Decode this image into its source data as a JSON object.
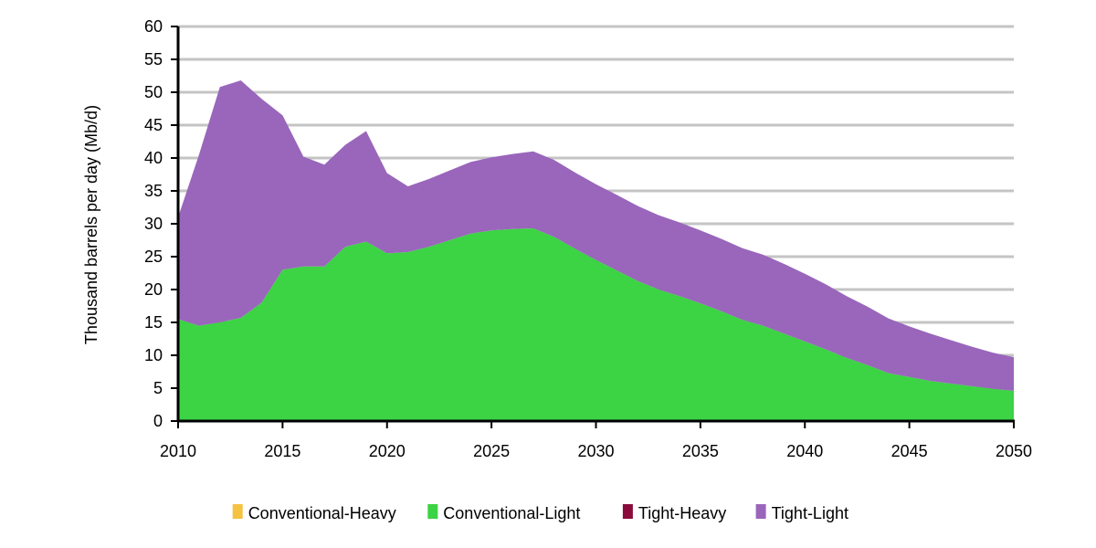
{
  "chart_data": {
    "type": "area",
    "stacked": true,
    "title": "",
    "xlabel": "",
    "ylabel": "Thousand barrels per day (Mb/d)",
    "xlim": [
      2010,
      2050
    ],
    "ylim": [
      0,
      60
    ],
    "x_ticks": [
      2010,
      2015,
      2020,
      2025,
      2030,
      2035,
      2040,
      2045,
      2050
    ],
    "y_ticks": [
      0,
      5,
      10,
      15,
      20,
      25,
      30,
      35,
      40,
      45,
      50,
      55,
      60
    ],
    "grid": "horizontal",
    "legend_position": "bottom",
    "x": [
      2010,
      2011,
      2012,
      2013,
      2014,
      2015,
      2016,
      2017,
      2018,
      2019,
      2020,
      2021,
      2022,
      2023,
      2024,
      2025,
      2026,
      2027,
      2028,
      2029,
      2030,
      2031,
      2032,
      2033,
      2034,
      2035,
      2036,
      2037,
      2038,
      2039,
      2040,
      2041,
      2042,
      2043,
      2044,
      2045,
      2046,
      2047,
      2048,
      2049,
      2050
    ],
    "series": [
      {
        "name": "Conventional-Heavy",
        "color": "#F5C242",
        "values": [
          0,
          0,
          0,
          0,
          0,
          0,
          0,
          0,
          0,
          0,
          0,
          0,
          0,
          0,
          0,
          0,
          0,
          0,
          0,
          0,
          0,
          0,
          0,
          0,
          0,
          0,
          0,
          0,
          0,
          0,
          0,
          0,
          0,
          0,
          0,
          0,
          0,
          0,
          0,
          0,
          0
        ]
      },
      {
        "name": "Conventional-Light",
        "color": "#3CD344",
        "values": [
          15.5,
          14.5,
          15.0,
          15.7,
          18.0,
          23.0,
          23.5,
          23.5,
          26.5,
          27.3,
          25.5,
          25.7,
          26.5,
          27.5,
          28.5,
          29.0,
          29.2,
          29.3,
          28.0,
          26.2,
          24.5,
          22.9,
          21.3,
          20.0,
          19.0,
          17.9,
          16.7,
          15.4,
          14.5,
          13.3,
          12.1,
          10.9,
          9.6,
          8.5,
          7.3,
          6.7,
          6.1,
          5.7,
          5.3,
          4.9,
          4.6
        ]
      },
      {
        "name": "Tight-Heavy",
        "color": "#8B0A3C",
        "values": [
          0,
          0,
          0,
          0,
          0,
          0,
          0,
          0,
          0,
          0,
          0,
          0,
          0,
          0,
          0,
          0,
          0,
          0,
          0,
          0,
          0,
          0,
          0,
          0,
          0,
          0,
          0,
          0,
          0,
          0,
          0,
          0,
          0,
          0,
          0,
          0,
          0,
          0,
          0,
          0,
          0
        ]
      },
      {
        "name": "Tight-Light",
        "color": "#9966BB",
        "values": [
          15.5,
          26.0,
          35.8,
          36.1,
          31.0,
          23.5,
          16.7,
          15.5,
          15.5,
          16.8,
          12.2,
          10.0,
          10.3,
          10.6,
          10.9,
          11.1,
          11.4,
          11.7,
          11.7,
          11.6,
          11.5,
          11.5,
          11.4,
          11.3,
          11.2,
          11.1,
          11.0,
          10.9,
          10.8,
          10.6,
          10.3,
          9.9,
          9.4,
          8.9,
          8.3,
          7.7,
          7.2,
          6.6,
          6.0,
          5.5,
          5.1
        ]
      }
    ]
  }
}
